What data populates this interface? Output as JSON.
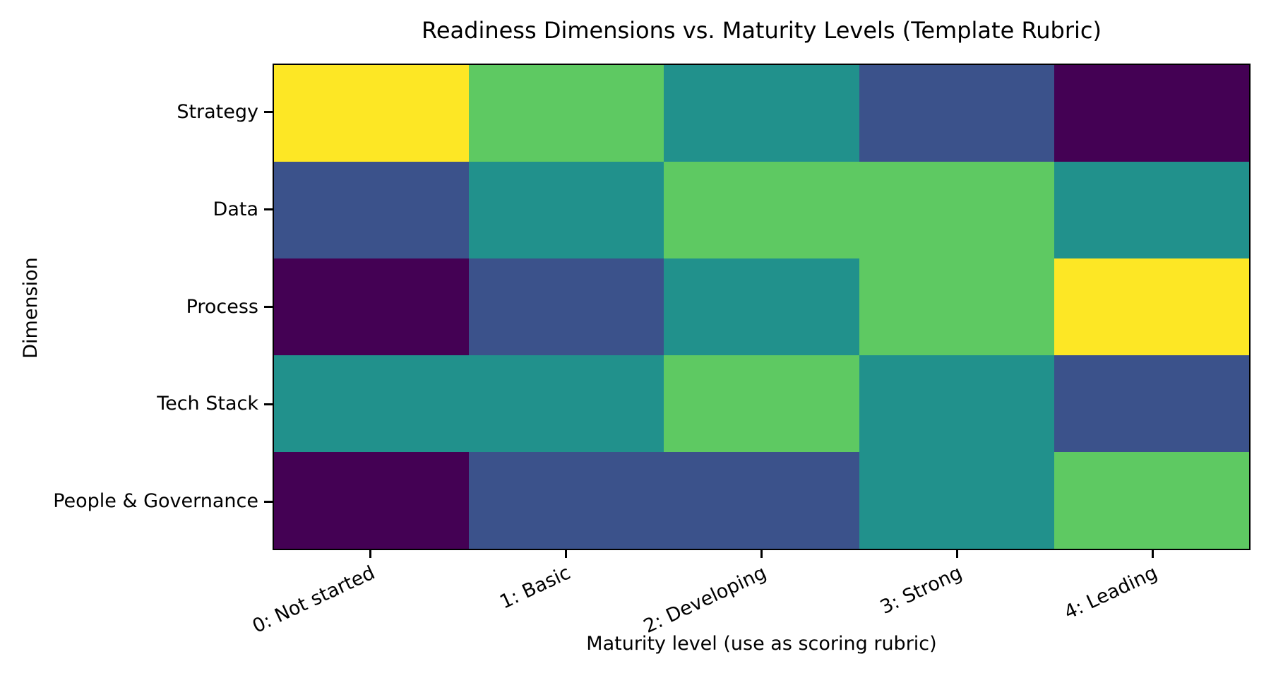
{
  "chart_data": {
    "type": "heatmap",
    "title": "Readiness Dimensions vs. Maturity Levels (Template Rubric)",
    "xlabel": "Maturity level (use as scoring rubric)",
    "ylabel": "Dimension",
    "x_categories": [
      "0: Not started",
      "1: Basic",
      "2: Developing",
      "3: Strong",
      "4: Leading"
    ],
    "y_categories": [
      "Strategy",
      "Data",
      "Process",
      "Tech Stack",
      "People & Governance"
    ],
    "matrix": [
      [
        4,
        3,
        2,
        1,
        0
      ],
      [
        1,
        2,
        3,
        3,
        2
      ],
      [
        0,
        1,
        2,
        3,
        4
      ],
      [
        2,
        2,
        3,
        2,
        1
      ],
      [
        0,
        1,
        1,
        2,
        3
      ]
    ],
    "value_range": [
      0,
      4
    ],
    "colormap": "viridis",
    "value_colors": {
      "0": "#440154",
      "1": "#3b528b",
      "2": "#21918c",
      "3": "#5ec962",
      "4": "#fde725"
    },
    "x_tick_rotation_deg": 25,
    "grid": false,
    "legend": "none",
    "axis_color": "#000000",
    "background_color": "#ffffff"
  }
}
